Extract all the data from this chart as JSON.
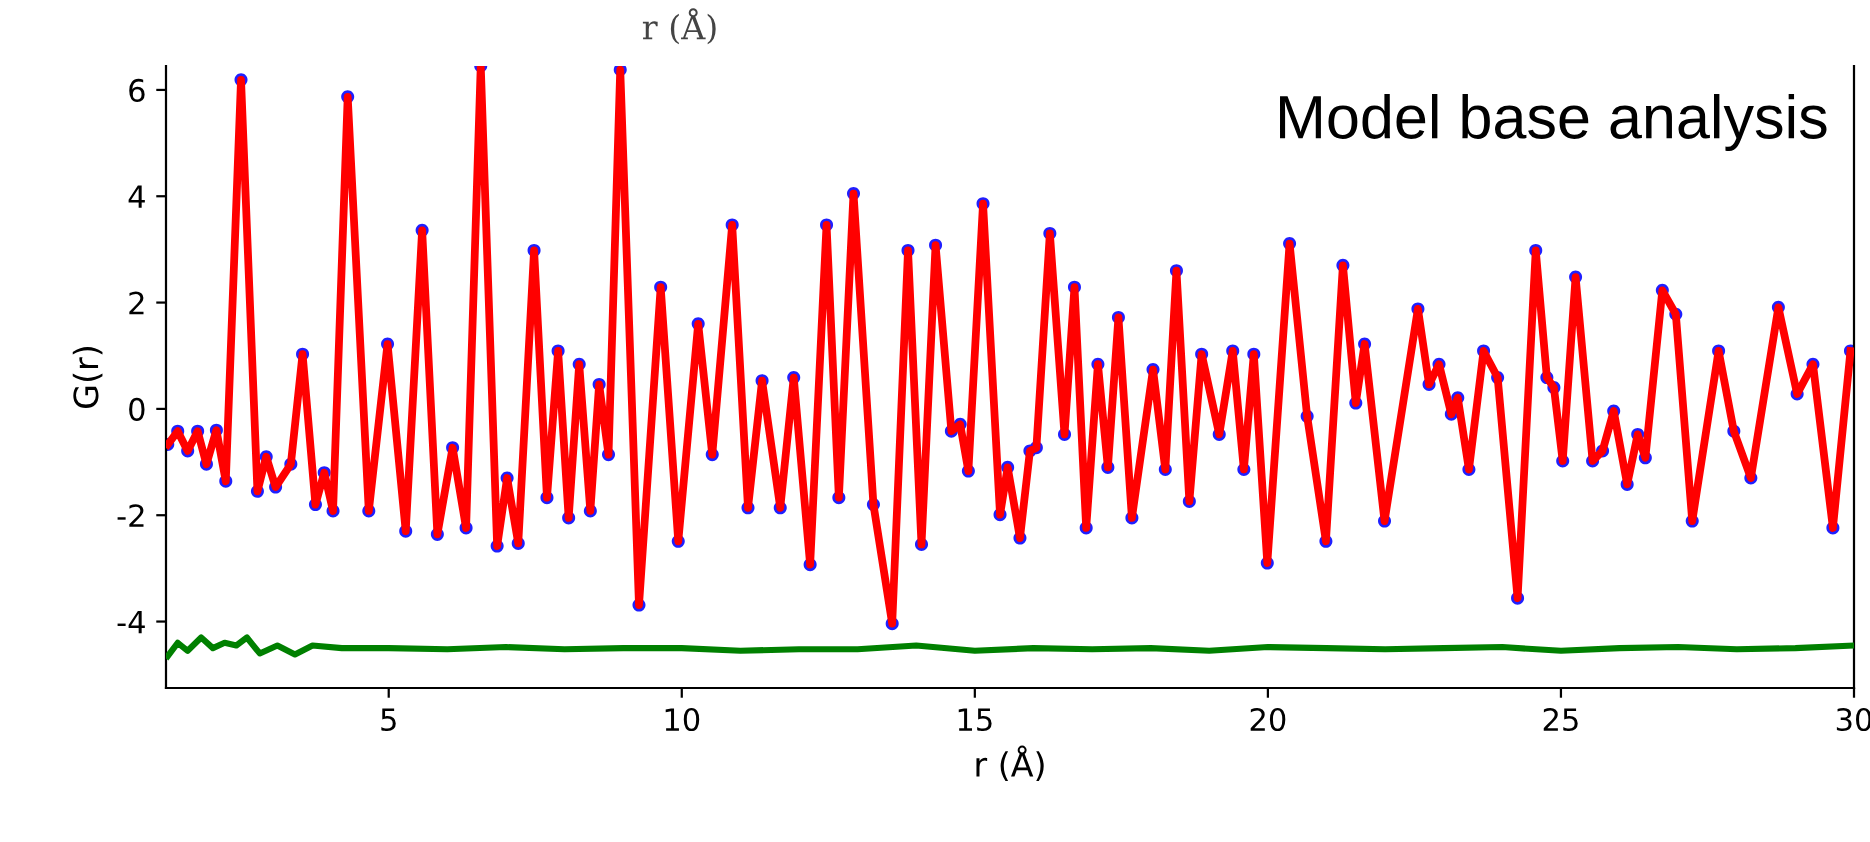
{
  "chart_data": {
    "type": "line",
    "xlabel": "r (Å)",
    "ylabel": "G(r)",
    "annotations": [
      "Model base analysis",
      "r (Å)"
    ],
    "xlim": [
      1.2,
      30
    ],
    "ylim": [
      -5.25,
      6.45
    ],
    "xticks": [
      5,
      10,
      15,
      20,
      25,
      30
    ],
    "yticks": [
      -4,
      -2,
      0,
      2,
      4,
      6
    ],
    "grid": false,
    "legend": false,
    "series": [
      {
        "type": "scatter",
        "marker": "circle",
        "color": "#1f1fff",
        "x": [
          1.23,
          1.4,
          1.57,
          1.74,
          1.89,
          2.06,
          2.22,
          2.48,
          2.76,
          2.91,
          3.07,
          3.33,
          3.53,
          3.75,
          3.9,
          4.05,
          4.3,
          4.66,
          4.98,
          5.29,
          5.57,
          5.83,
          6.09,
          6.32,
          6.57,
          6.85,
          7.02,
          7.21,
          7.48,
          7.7,
          7.89,
          8.07,
          8.25,
          8.44,
          8.59,
          8.75,
          8.95,
          9.27,
          9.64,
          9.94,
          10.28,
          10.52,
          10.86,
          11.13,
          11.37,
          11.68,
          11.91,
          12.19,
          12.47,
          12.68,
          12.93,
          13.27,
          13.59,
          13.86,
          14.09,
          14.33,
          14.6,
          14.75,
          14.89,
          15.14,
          15.43,
          15.56,
          15.77,
          15.94,
          16.05,
          16.28,
          16.53,
          16.7,
          16.9,
          17.1,
          17.27,
          17.45,
          17.68,
          18.04,
          18.25,
          18.44,
          18.66,
          18.87,
          19.17,
          19.4,
          19.59,
          19.76,
          19.99,
          20.37,
          20.67,
          20.99,
          21.28,
          21.5,
          21.65,
          21.99,
          22.56,
          22.75,
          22.92,
          23.13,
          23.24,
          23.43,
          23.68,
          23.92,
          24.26,
          24.57,
          24.76,
          24.88,
          25.03,
          25.25,
          25.54,
          25.71,
          25.9,
          26.13,
          26.31,
          26.44,
          26.73,
          26.96,
          27.24,
          27.69,
          27.95,
          28.24,
          28.71,
          29.03,
          29.3,
          29.64,
          29.94
        ],
        "values": [
          -0.67,
          -0.42,
          -0.79,
          -0.42,
          -1.04,
          -0.4,
          -1.36,
          6.19,
          -1.55,
          -0.9,
          -1.47,
          -1.04,
          1.03,
          -1.8,
          -1.2,
          -1.92,
          5.87,
          -1.92,
          1.22,
          -2.3,
          3.36,
          -2.36,
          -0.73,
          -2.24,
          6.45,
          -2.58,
          -1.3,
          -2.53,
          2.98,
          -1.67,
          1.09,
          -2.05,
          0.84,
          -1.92,
          0.46,
          -0.86,
          6.38,
          -3.69,
          2.29,
          -2.49,
          1.6,
          -0.86,
          3.46,
          -1.86,
          0.53,
          -1.86,
          0.59,
          -2.93,
          3.46,
          -1.67,
          4.05,
          -1.8,
          -4.04,
          2.98,
          -2.55,
          3.08,
          -0.42,
          -0.29,
          -1.17,
          3.86,
          -1.99,
          -1.1,
          -2.43,
          -0.79,
          -0.73,
          3.3,
          -0.48,
          2.29,
          -2.24,
          0.84,
          -1.1,
          1.72,
          -2.05,
          0.74,
          -1.14,
          2.6,
          -1.74,
          1.03,
          -0.48,
          1.09,
          -1.14,
          1.03,
          -2.9,
          3.11,
          -0.14,
          -2.49,
          2.7,
          0.11,
          1.22,
          -2.11,
          1.88,
          0.46,
          0.84,
          -0.1,
          0.21,
          -1.14,
          1.09,
          0.59,
          -3.56,
          2.98,
          0.59,
          0.4,
          -0.98,
          2.48,
          -0.98,
          -0.79,
          -0.04,
          -1.42,
          -0.48,
          -0.92,
          2.23,
          1.78,
          -2.11,
          1.09,
          -0.42,
          -1.3,
          1.91,
          0.28,
          0.84,
          -2.24,
          1.09
        ]
      },
      {
        "type": "line",
        "color": "#ff0000",
        "x": [
          1.23,
          1.4,
          1.57,
          1.74,
          1.89,
          2.06,
          2.22,
          2.48,
          2.76,
          2.91,
          3.07,
          3.33,
          3.53,
          3.75,
          3.9,
          4.05,
          4.3,
          4.66,
          4.98,
          5.29,
          5.57,
          5.83,
          6.09,
          6.32,
          6.57,
          6.85,
          7.02,
          7.21,
          7.48,
          7.7,
          7.89,
          8.07,
          8.25,
          8.44,
          8.59,
          8.75,
          8.95,
          9.27,
          9.64,
          9.94,
          10.28,
          10.52,
          10.86,
          11.13,
          11.37,
          11.68,
          11.91,
          12.19,
          12.47,
          12.68,
          12.93,
          13.27,
          13.59,
          13.86,
          14.09,
          14.33,
          14.6,
          14.75,
          14.89,
          15.14,
          15.43,
          15.56,
          15.77,
          15.94,
          16.05,
          16.28,
          16.53,
          16.7,
          16.9,
          17.1,
          17.27,
          17.45,
          17.68,
          18.04,
          18.25,
          18.44,
          18.66,
          18.87,
          19.17,
          19.4,
          19.59,
          19.76,
          19.99,
          20.37,
          20.67,
          20.99,
          21.28,
          21.5,
          21.65,
          21.99,
          22.56,
          22.75,
          22.92,
          23.13,
          23.24,
          23.43,
          23.68,
          23.92,
          24.26,
          24.57,
          24.76,
          24.88,
          25.03,
          25.25,
          25.54,
          25.71,
          25.9,
          26.13,
          26.31,
          26.44,
          26.73,
          26.96,
          27.24,
          27.69,
          27.95,
          28.24,
          28.71,
          29.03,
          29.3,
          29.64,
          29.94
        ],
        "values": [
          -0.67,
          -0.42,
          -0.79,
          -0.42,
          -1.04,
          -0.4,
          -1.36,
          6.19,
          -1.55,
          -0.9,
          -1.47,
          -1.04,
          1.03,
          -1.8,
          -1.2,
          -1.92,
          5.87,
          -1.92,
          1.22,
          -2.3,
          3.36,
          -2.36,
          -0.73,
          -2.24,
          6.45,
          -2.58,
          -1.3,
          -2.53,
          2.98,
          -1.67,
          1.09,
          -2.05,
          0.84,
          -1.92,
          0.46,
          -0.86,
          6.38,
          -3.69,
          2.29,
          -2.49,
          1.6,
          -0.86,
          3.46,
          -1.86,
          0.53,
          -1.86,
          0.59,
          -2.93,
          3.46,
          -1.67,
          4.05,
          -1.8,
          -4.04,
          2.98,
          -2.55,
          3.08,
          -0.42,
          -0.29,
          -1.17,
          3.86,
          -1.99,
          -1.1,
          -2.43,
          -0.79,
          -0.73,
          3.3,
          -0.48,
          2.29,
          -2.24,
          0.84,
          -1.1,
          1.72,
          -2.05,
          0.74,
          -1.14,
          2.6,
          -1.74,
          1.03,
          -0.48,
          1.09,
          -1.14,
          1.03,
          -2.9,
          3.11,
          -0.14,
          -2.49,
          2.7,
          0.11,
          1.22,
          -2.11,
          1.88,
          0.46,
          0.84,
          -0.1,
          0.21,
          -1.14,
          1.09,
          0.59,
          -3.56,
          2.98,
          0.59,
          0.4,
          -0.98,
          2.48,
          -0.98,
          -0.79,
          -0.04,
          -1.42,
          -0.48,
          -0.92,
          2.23,
          1.78,
          -2.11,
          1.09,
          -0.42,
          -1.3,
          1.91,
          0.28,
          0.84,
          -2.24,
          1.09
        ]
      },
      {
        "type": "line",
        "color": "#008000",
        "x": [
          1.23,
          1.4,
          1.57,
          1.8,
          2.0,
          2.2,
          2.4,
          2.58,
          2.8,
          3.1,
          3.4,
          3.7,
          4.2,
          5,
          6,
          7,
          8,
          9,
          10,
          11,
          12,
          13,
          14,
          15,
          16,
          17,
          18,
          19,
          20,
          21,
          22,
          23,
          24,
          25,
          26,
          27,
          28,
          29,
          30
        ],
        "values": [
          -4.65,
          -4.4,
          -4.55,
          -4.3,
          -4.5,
          -4.4,
          -4.45,
          -4.3,
          -4.6,
          -4.45,
          -4.62,
          -4.45,
          -4.5,
          -4.5,
          -4.52,
          -4.48,
          -4.52,
          -4.5,
          -4.5,
          -4.55,
          -4.52,
          -4.52,
          -4.45,
          -4.55,
          -4.5,
          -4.52,
          -4.5,
          -4.55,
          -4.48,
          -4.5,
          -4.52,
          -4.5,
          -4.48,
          -4.55,
          -4.5,
          -4.48,
          -4.52,
          -4.5,
          -4.45
        ]
      }
    ]
  }
}
